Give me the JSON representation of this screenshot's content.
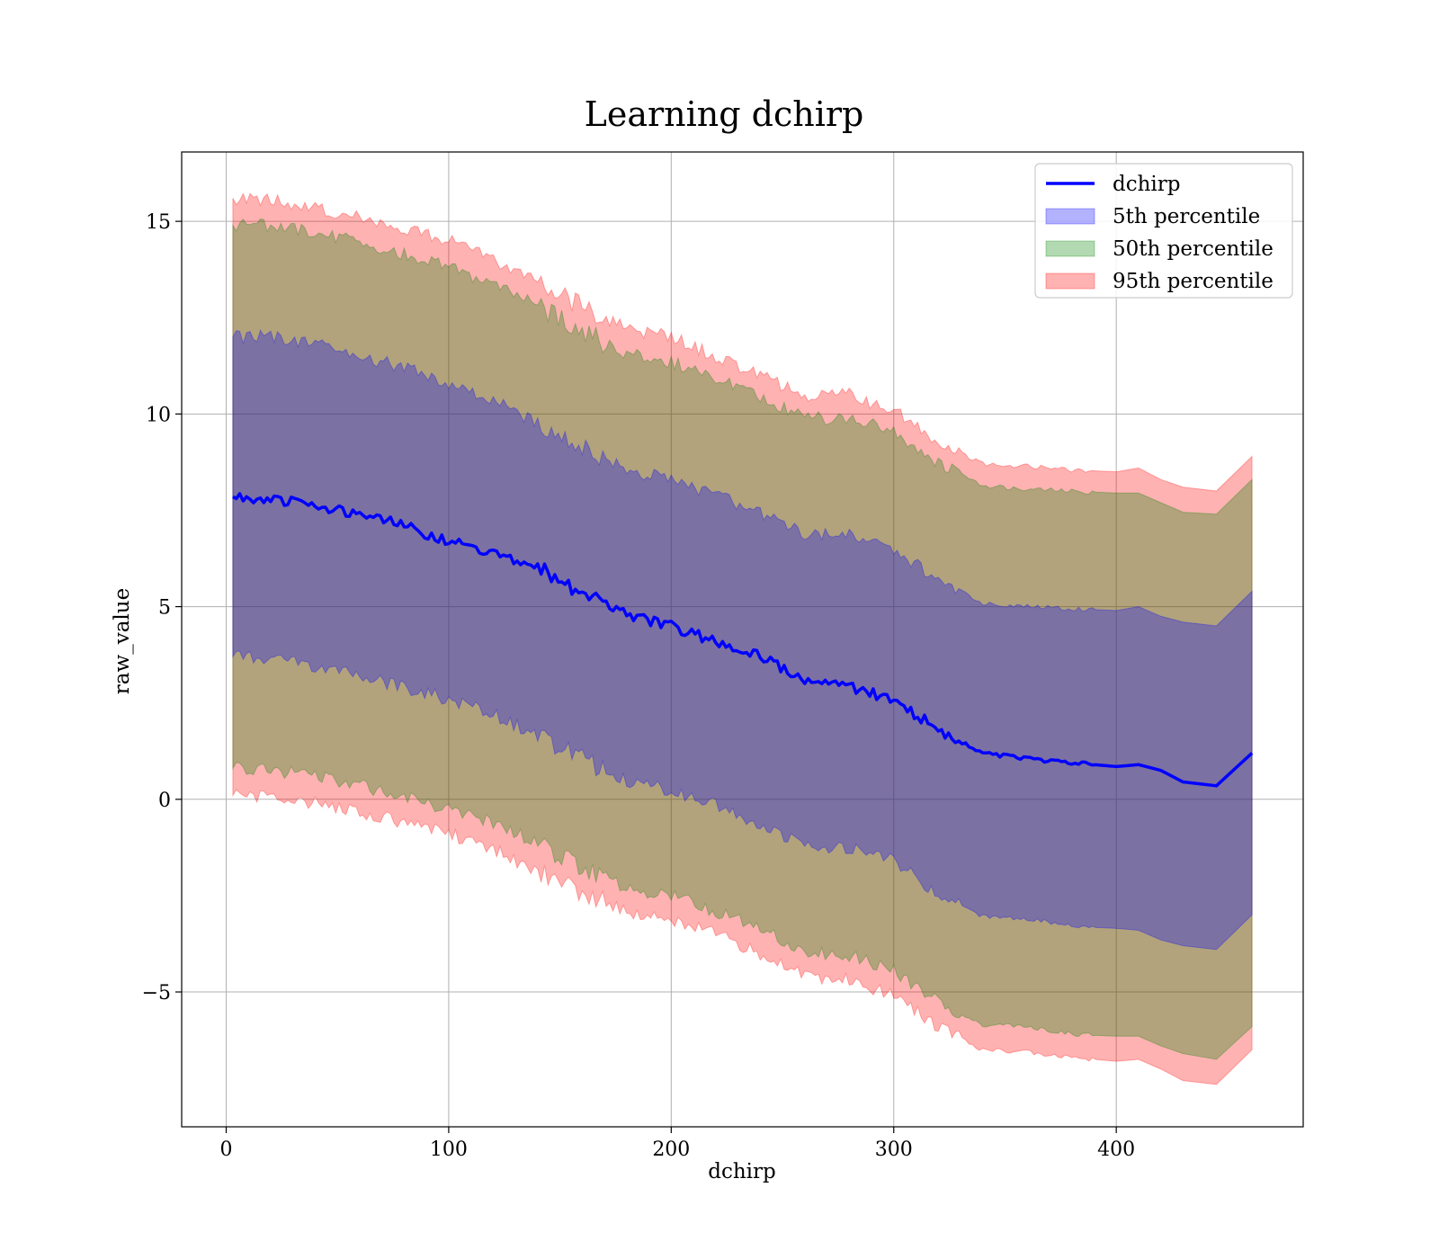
{
  "chart_data": {
    "type": "area",
    "title": "Learning dchirp",
    "xlabel": "dchirp",
    "ylabel": "raw_value",
    "xlim": [
      -20,
      484
    ],
    "ylim": [
      -8.5,
      16.8
    ],
    "xticks": [
      0,
      100,
      200,
      300,
      400
    ],
    "xtick_labels": [
      "0",
      "100",
      "200",
      "300",
      "400"
    ],
    "yticks": [
      -5,
      0,
      5,
      10,
      15
    ],
    "ytick_labels": [
      "−5",
      "0",
      "5",
      "10",
      "15"
    ],
    "grid": true,
    "legend_position": "top-right",
    "x": [
      3,
      20,
      40,
      60,
      80,
      100,
      120,
      140,
      160,
      180,
      200,
      220,
      240,
      260,
      280,
      300,
      320,
      340,
      360,
      380,
      400,
      410,
      420,
      430,
      445,
      461
    ],
    "line": {
      "name": "dchirp",
      "color": "#0000ff",
      "values": [
        7.85,
        7.8,
        7.65,
        7.4,
        7.1,
        6.7,
        6.4,
        6.0,
        5.3,
        4.8,
        4.5,
        4.1,
        3.7,
        3.1,
        2.9,
        2.6,
        1.8,
        1.2,
        1.05,
        0.95,
        0.85,
        0.9,
        0.75,
        0.45,
        0.35,
        1.2
      ]
    },
    "bands": [
      {
        "name": "95th percentile",
        "color": "#ff0000",
        "opacity": 0.3,
        "upper": [
          15.6,
          15.55,
          15.35,
          15.1,
          14.8,
          14.5,
          14.0,
          13.4,
          12.8,
          12.2,
          12.0,
          11.5,
          11.0,
          10.5,
          10.5,
          10.1,
          9.3,
          8.7,
          8.65,
          8.55,
          8.5,
          8.6,
          8.3,
          8.1,
          8.0,
          8.9
        ],
        "lower": [
          0.1,
          0.05,
          -0.1,
          -0.35,
          -0.6,
          -0.9,
          -1.3,
          -1.9,
          -2.4,
          -2.9,
          -3.1,
          -3.5,
          -4.0,
          -4.6,
          -4.7,
          -5.1,
          -5.9,
          -6.5,
          -6.55,
          -6.7,
          -6.8,
          -6.75,
          -7.0,
          -7.3,
          -7.4,
          -6.5
        ]
      },
      {
        "name": "50th percentile",
        "color": "#008000",
        "opacity": 0.3,
        "upper": [
          14.9,
          14.9,
          14.7,
          14.45,
          14.15,
          13.8,
          13.35,
          12.8,
          12.15,
          11.55,
          11.35,
          10.95,
          10.4,
          9.9,
          9.9,
          9.55,
          8.75,
          8.15,
          8.05,
          8.0,
          7.95,
          7.95,
          7.7,
          7.45,
          7.4,
          8.3
        ],
        "lower": [
          0.8,
          0.75,
          0.6,
          0.35,
          0.05,
          -0.25,
          -0.6,
          -1.15,
          -1.75,
          -2.3,
          -2.5,
          -2.9,
          -3.35,
          -4.0,
          -4.05,
          -4.45,
          -5.25,
          -5.85,
          -5.9,
          -6.1,
          -6.15,
          -6.15,
          -6.4,
          -6.6,
          -6.75,
          -5.9
        ]
      },
      {
        "name": "5th percentile",
        "color": "#0000ff",
        "opacity": 0.3,
        "upper": [
          12.0,
          12.0,
          11.8,
          11.5,
          11.2,
          10.8,
          10.35,
          9.75,
          9.15,
          8.55,
          8.3,
          7.9,
          7.4,
          6.9,
          6.85,
          6.5,
          5.7,
          5.1,
          5.0,
          4.95,
          4.9,
          5.0,
          4.75,
          4.6,
          4.5,
          5.4
        ],
        "lower": [
          3.7,
          3.65,
          3.45,
          3.2,
          2.9,
          2.6,
          2.2,
          1.65,
          1.05,
          0.45,
          0.25,
          -0.15,
          -0.65,
          -1.2,
          -1.25,
          -1.6,
          -2.45,
          -3.05,
          -3.1,
          -3.3,
          -3.35,
          -3.4,
          -3.65,
          -3.8,
          -3.9,
          -3.0
        ]
      }
    ],
    "legend": [
      {
        "label": "dchirp",
        "kind": "line",
        "color": "#0000ff"
      },
      {
        "label": "5th percentile",
        "kind": "patch",
        "color": "#0000ff"
      },
      {
        "label": "50th percentile",
        "kind": "patch",
        "color": "#008000"
      },
      {
        "label": "95th percentile",
        "kind": "patch",
        "color": "#ff0000"
      }
    ]
  }
}
